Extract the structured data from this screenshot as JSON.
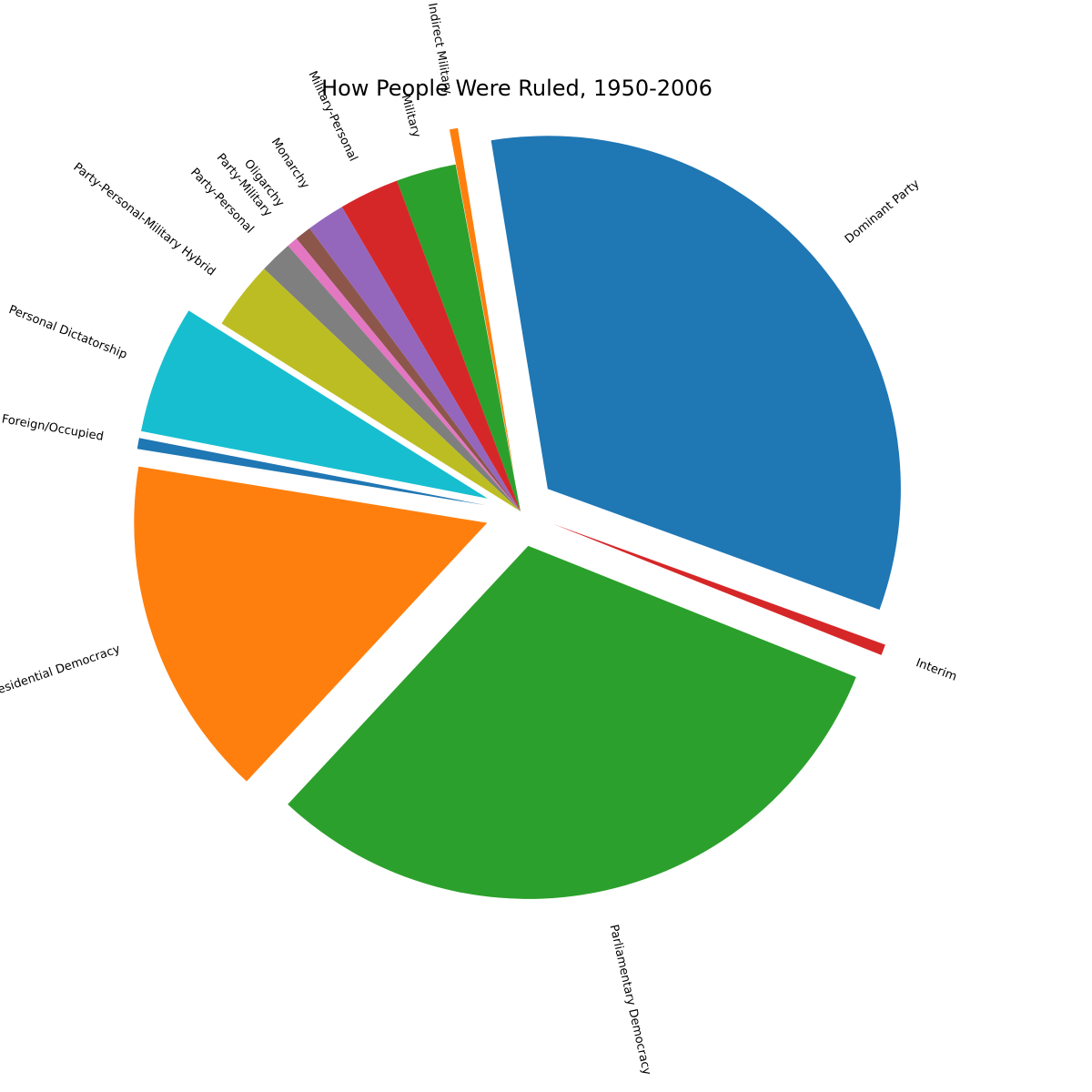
{
  "chart_data": {
    "type": "pie",
    "title": "How People Were Ruled, 1950-2006",
    "start_angle": -20,
    "direction": "counterclockwise",
    "slices": [
      {
        "label": "Dominant Party",
        "value": 33.13,
        "color": "#1f77b4",
        "exploded": true
      },
      {
        "label": "Indirect Military",
        "value": 0.38,
        "color": "#ff7f0e",
        "exploded": true
      },
      {
        "label": "Military",
        "value": 2.75,
        "color": "#2ca02c",
        "exploded": false
      },
      {
        "label": "Military-Personal",
        "value": 2.75,
        "color": "#d62728",
        "exploded": false
      },
      {
        "label": "Monarchy",
        "value": 1.75,
        "color": "#9467bd",
        "exploded": false
      },
      {
        "label": "Oligarchy",
        "value": 0.75,
        "color": "#8c564b",
        "exploded": false
      },
      {
        "label": "Party-Military",
        "value": 0.5,
        "color": "#e377c2",
        "exploded": false
      },
      {
        "label": "Party-Personal",
        "value": 1.5,
        "color": "#7f7f7f",
        "exploded": false
      },
      {
        "label": "Party-Personal-Military Hybrid",
        "value": 3.13,
        "color": "#bcbd22",
        "exploded": false
      },
      {
        "label": "Personal Dictatorship",
        "value": 5.88,
        "color": "#17becf",
        "exploded": true
      },
      {
        "label": "Foreign/Occupied",
        "value": 0.5,
        "color": "#1f77b4",
        "exploded": true
      },
      {
        "label": "Presidential Democracy",
        "value": 15.63,
        "color": "#ff7f0e",
        "exploded": true
      },
      {
        "label": "Parliamentary Democracy",
        "value": 30.88,
        "color": "#2ca02c",
        "exploded": true
      },
      {
        "label": "Interim",
        "value": 0.5,
        "color": "#d62728",
        "exploded": true
      }
    ]
  }
}
